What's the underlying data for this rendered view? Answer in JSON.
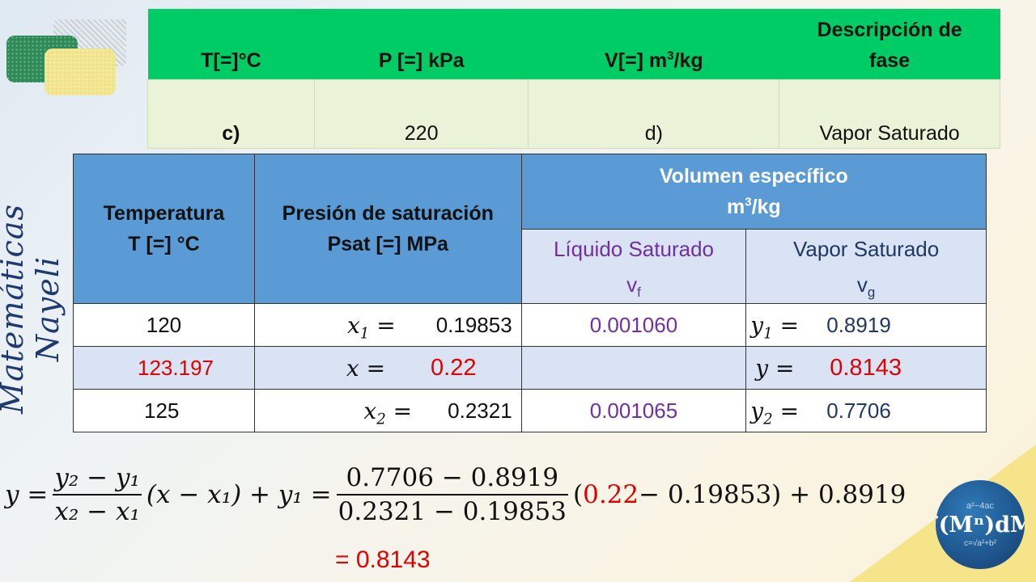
{
  "watermark": "Matemáticas Nayeli",
  "top_table": {
    "headers": {
      "t": "T[=]°C",
      "p": "P [=] kPa",
      "v_pre": "V[=] m",
      "v_sup": "3",
      "v_post": "/kg",
      "fase_1": "Descripción de",
      "fase_2": "fase"
    },
    "row": {
      "t": "c)",
      "p": "220",
      "v": "d)",
      "fase": "Vapor Saturado"
    }
  },
  "main_table": {
    "headers": {
      "temp_1": "Temperatura",
      "temp_2": "T [=] °C",
      "pres_1": "Presión de saturación",
      "pres_2": "Psat [=] MPa",
      "vol_1": "Volumen específico",
      "vol_2_pre": "m",
      "vol_2_sup": "3",
      "vol_2_post": "/kg",
      "liq": "Líquido Saturado",
      "liq_sym": "v",
      "liq_sub": "f",
      "vap": "Vapor Saturado",
      "vap_sym": "v",
      "vap_sub": "g"
    },
    "rows": [
      {
        "t": "120",
        "x_label": "x",
        "x_sub": "1",
        "eq": "=",
        "p": "0.19853",
        "vf": "0.001060",
        "y_label": "y",
        "y_sub": "1",
        "vg": "0.8919"
      },
      {
        "t": "123.197",
        "x_label": "x",
        "x_sub": "",
        "eq": "=",
        "p": "0.22",
        "vf": "",
        "y_label": "y",
        "y_sub": "",
        "vg": "0.8143"
      },
      {
        "t": "125",
        "x_label": "x",
        "x_sub": "2",
        "eq": "=",
        "p": "0.2321",
        "vf": "0.001065",
        "y_label": "y",
        "y_sub": "2",
        "vg": "0.7706"
      }
    ]
  },
  "formula": {
    "lhs": "y =",
    "frac1_num": "y₂ − y₁",
    "frac1_den": "x₂ − x₁",
    "mid": "(x  −  x₁) + y₁ =",
    "frac2_num": "0.7706 − 0.8919",
    "frac2_den": "0.2321 − 0.19853",
    "open_paren": "(",
    "red_val": "0.22",
    "tail": " − 0.19853) + 0.8919"
  },
  "result": "= 0.8143",
  "logo": {
    "top": "a²−4ac",
    "main": "∫(Mⁿ)dM",
    "bottom": "c=√a²+b²"
  },
  "colors": {
    "green_header": "#00cc66",
    "blue_header": "#5b9bd5",
    "highlight_red": "#e00000",
    "purple": "#7030a0",
    "navy": "#1f3864"
  }
}
